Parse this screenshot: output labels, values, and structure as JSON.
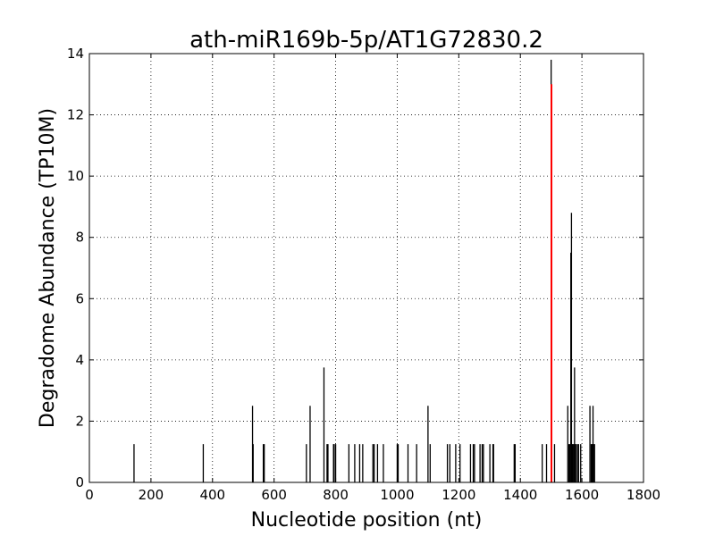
{
  "chart_data": {
    "type": "bar",
    "title": "ath-miR169b-5p/AT1G72830.2",
    "xlabel": "Nucleotide position (nt)",
    "ylabel": "Degradome Abundance (TP10M)",
    "xlim": [
      0,
      1800
    ],
    "ylim": [
      0,
      14
    ],
    "xticks": [
      0,
      200,
      400,
      600,
      800,
      1000,
      1200,
      1400,
      1600,
      1800
    ],
    "yticks": [
      0,
      2,
      4,
      6,
      8,
      10,
      12,
      14
    ],
    "grid": true,
    "colors": {
      "bars": "#000000",
      "highlight": "#ff0000",
      "grid": "#000000"
    },
    "series": [
      {
        "name": "",
        "color": "#000000",
        "x": [
          145,
          370,
          530,
          532,
          565,
          568,
          705,
          717,
          762,
          772,
          775,
          793,
          795,
          800,
          843,
          862,
          878,
          888,
          921,
          925,
          936,
          955,
          1000,
          1003,
          1035,
          1063,
          1100,
          1107,
          1163,
          1171,
          1190,
          1204,
          1238,
          1247,
          1251,
          1269,
          1276,
          1280,
          1301,
          1311,
          1313,
          1380,
          1383,
          1471,
          1485,
          1500,
          1511,
          1554,
          1558,
          1561,
          1564,
          1566,
          1568,
          1570,
          1573,
          1576,
          1578,
          1580,
          1585,
          1589,
          1596,
          1626,
          1630,
          1632,
          1634,
          1636,
          1638,
          1641
        ],
        "values": [
          1.25,
          1.25,
          2.5,
          1.25,
          1.25,
          1.25,
          1.25,
          2.5,
          3.75,
          1.25,
          1.25,
          1.25,
          1.25,
          1.25,
          1.25,
          1.25,
          1.25,
          1.25,
          1.25,
          1.25,
          1.25,
          1.25,
          1.25,
          1.25,
          1.25,
          1.25,
          2.5,
          1.25,
          1.25,
          1.25,
          1.25,
          1.25,
          1.25,
          1.25,
          1.25,
          1.25,
          1.25,
          1.25,
          1.25,
          1.25,
          1.25,
          1.25,
          1.25,
          1.25,
          1.25,
          13.8,
          1.25,
          2.5,
          1.25,
          1.25,
          7.5,
          8.8,
          1.25,
          1.25,
          1.25,
          3.75,
          1.25,
          1.25,
          1.25,
          1.25,
          1.25,
          2.5,
          1.25,
          1.25,
          1.25,
          2.5,
          1.25,
          1.25
        ]
      },
      {
        "name": "",
        "color": "#ff0000",
        "x": [
          1501
        ],
        "values": [
          13.0
        ]
      }
    ]
  }
}
